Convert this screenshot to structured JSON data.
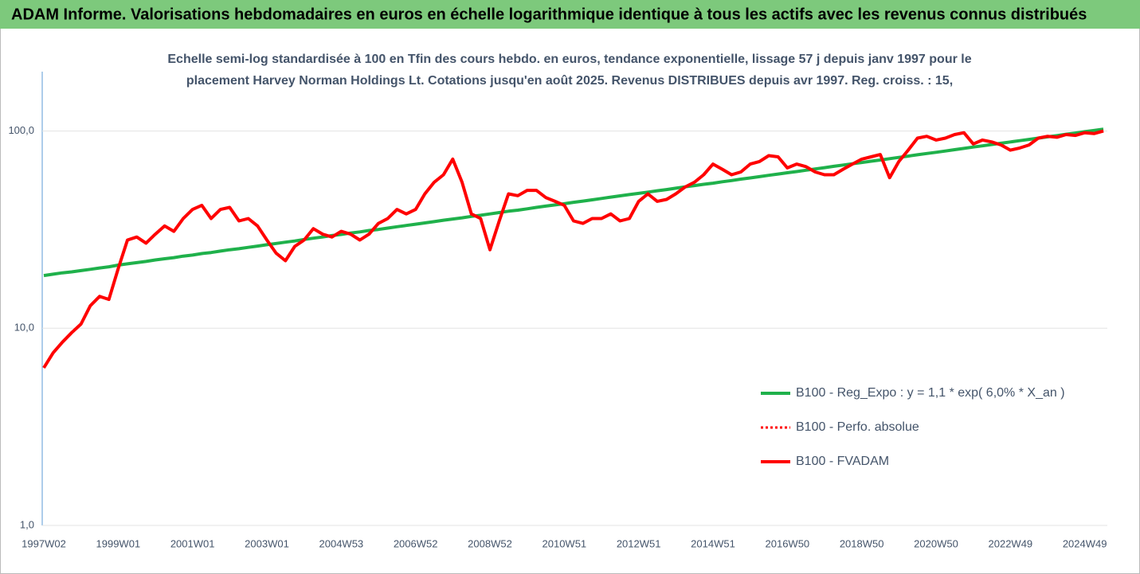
{
  "chart_data": {
    "type": "line",
    "title": "ADAM Informe. Valorisations hebdomadaires en euros en échelle logarithmique identique à tous les actifs avec les revenus connus distribués",
    "subtitle": [
      "Echelle semi-log standardisée à 100 en Tfin des cours hebdo. en euros, tendance exponentielle, lissage 57 j depuis janv 1997 pour le",
      "placement Harvey Norman Holdings Lt. Cotations jusqu'en août 2025. Revenus DISTRIBUES depuis avr 1997. Reg. croiss. : 15,"
    ],
    "categories": [
      "1997W02",
      null,
      null,
      null,
      null,
      null,
      null,
      null,
      "1999W01",
      null,
      null,
      null,
      null,
      null,
      null,
      null,
      "2001W01",
      null,
      null,
      null,
      null,
      null,
      null,
      null,
      "2003W01",
      null,
      null,
      null,
      null,
      null,
      null,
      null,
      "2004W53",
      null,
      null,
      null,
      null,
      null,
      null,
      null,
      "2006W52",
      null,
      null,
      null,
      null,
      null,
      null,
      null,
      "2008W52",
      null,
      null,
      null,
      null,
      null,
      null,
      null,
      "2010W51",
      null,
      null,
      null,
      null,
      null,
      null,
      null,
      "2012W51",
      null,
      null,
      null,
      null,
      null,
      null,
      null,
      "2014W51",
      null,
      null,
      null,
      null,
      null,
      null,
      null,
      "2016W50",
      null,
      null,
      null,
      null,
      null,
      null,
      null,
      "2018W50",
      null,
      null,
      null,
      null,
      null,
      null,
      null,
      "2020W50",
      null,
      null,
      null,
      null,
      null,
      null,
      null,
      "2022W49",
      null,
      null,
      null,
      null,
      null,
      null,
      null,
      "2024W49",
      null,
      null
    ],
    "log_scale": true,
    "grid": true,
    "legend": "right",
    "ylim": [
      1,
      200
    ],
    "yticks": [
      {
        "value": 1,
        "label": "1,0"
      },
      {
        "value": 10,
        "label": "10,0"
      },
      {
        "value": 100,
        "label": "100,0"
      }
    ],
    "series": [
      {
        "name": "B100 - Reg_Expo : y = 1,1 * exp( 6,0% *  X_an )",
        "color": "#1fb14b",
        "style": "solid",
        "values": [
          18.5,
          18.8,
          19.1,
          19.3,
          19.6,
          19.9,
          20.2,
          20.5,
          20.9,
          21.2,
          21.5,
          21.8,
          22.2,
          22.5,
          22.8,
          23.2,
          23.5,
          23.9,
          24.2,
          24.6,
          25.0,
          25.3,
          25.7,
          26.1,
          26.5,
          26.9,
          27.3,
          27.7,
          28.2,
          28.6,
          29.0,
          29.5,
          29.9,
          30.4,
          30.8,
          31.3,
          31.7,
          32.2,
          32.7,
          33.2,
          33.7,
          34.2,
          34.7,
          35.3,
          35.8,
          36.3,
          36.9,
          37.4,
          38.0,
          38.6,
          39.2,
          39.7,
          40.3,
          41.0,
          41.6,
          42.2,
          42.8,
          43.5,
          44.1,
          44.8,
          45.5,
          46.2,
          46.9,
          47.6,
          48.3,
          49.0,
          49.8,
          50.5,
          51.3,
          52.1,
          52.9,
          53.7,
          54.4,
          55.3,
          56.1,
          57.0,
          57.8,
          58.7,
          59.6,
          60.5,
          61.4,
          62.3,
          63.3,
          64.2,
          65.2,
          66.2,
          67.2,
          68.2,
          69.2,
          70.3,
          71.3,
          72.4,
          73.5,
          74.6,
          75.8,
          76.9,
          78.0,
          79.2,
          80.4,
          81.6,
          82.9,
          84.1,
          85.4,
          86.7,
          88.0,
          89.3,
          90.7,
          92.0,
          93.4,
          94.8,
          96.3,
          97.7,
          99.2,
          100.7,
          102.2
        ]
      },
      {
        "name": "B100 - Perfo. absolue",
        "color": "#ff0000",
        "style": "dotted",
        "values": [
          6.3,
          7.5,
          8.5,
          9.5,
          10.5,
          13,
          14.5,
          14,
          20,
          28,
          29,
          27,
          30,
          33,
          31,
          36,
          40,
          42,
          36,
          40,
          41,
          35,
          36,
          33,
          28,
          24,
          22,
          26,
          28,
          32,
          30,
          29,
          31,
          30,
          28,
          30,
          34,
          36,
          40,
          38,
          40,
          48,
          55,
          60,
          72,
          55,
          38,
          36,
          25,
          35,
          48,
          47,
          50,
          50,
          46,
          44,
          42,
          35,
          34,
          36,
          36,
          38,
          35,
          36,
          44,
          48,
          44,
          45,
          48,
          52,
          55,
          60,
          68,
          64,
          60,
          62,
          68,
          70,
          75,
          74,
          65,
          68,
          66,
          62,
          60,
          60,
          64,
          68,
          72,
          74,
          76,
          58,
          70,
          80,
          92,
          94,
          90,
          92,
          96,
          98,
          86,
          90,
          88,
          85,
          80,
          82,
          85,
          92,
          94,
          93,
          96,
          95,
          98,
          97,
          100
        ]
      },
      {
        "name": "B100 - FVADAM",
        "color": "#ff0000",
        "style": "solid",
        "values": [
          6.3,
          7.5,
          8.5,
          9.5,
          10.5,
          13,
          14.5,
          14,
          20,
          28,
          29,
          27,
          30,
          33,
          31,
          36,
          40,
          42,
          36,
          40,
          41,
          35,
          36,
          33,
          28,
          24,
          22,
          26,
          28,
          32,
          30,
          29,
          31,
          30,
          28,
          30,
          34,
          36,
          40,
          38,
          40,
          48,
          55,
          60,
          72,
          55,
          38,
          36,
          25,
          35,
          48,
          47,
          50,
          50,
          46,
          44,
          42,
          35,
          34,
          36,
          36,
          38,
          35,
          36,
          44,
          48,
          44,
          45,
          48,
          52,
          55,
          60,
          68,
          64,
          60,
          62,
          68,
          70,
          75,
          74,
          65,
          68,
          66,
          62,
          60,
          60,
          64,
          68,
          72,
          74,
          76,
          58,
          70,
          80,
          92,
          94,
          90,
          92,
          96,
          98,
          86,
          90,
          88,
          85,
          80,
          82,
          85,
          92,
          94,
          93,
          96,
          95,
          98,
          97,
          100
        ]
      }
    ]
  }
}
